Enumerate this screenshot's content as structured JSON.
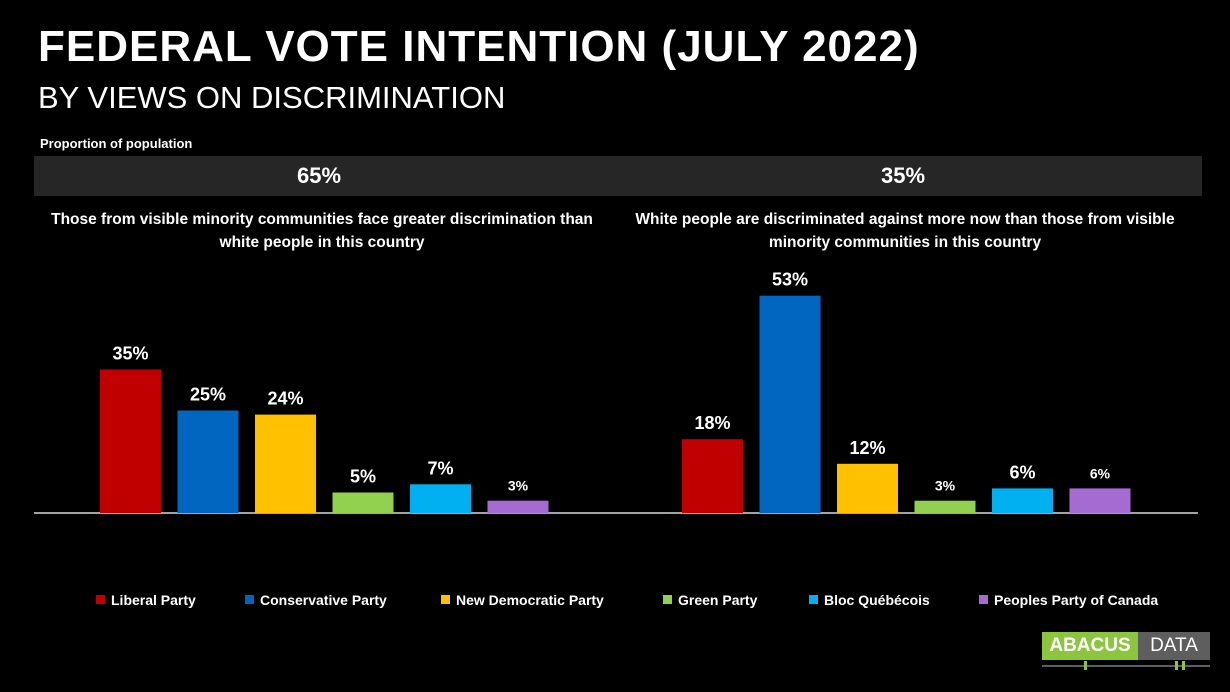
{
  "header": {
    "title": "FEDERAL VOTE INTENTION (JULY 2022)",
    "subtitle": "BY VIEWS ON DISCRIMINATION",
    "proportion_label": "Proportion of population"
  },
  "chart_data": {
    "type": "bar",
    "title": "FEDERAL VOTE INTENTION (JULY 2022)",
    "subtitle": "BY VIEWS ON DISCRIMINATION",
    "ylim": [
      0,
      60
    ],
    "series": [
      {
        "name": "Liberal Party",
        "color": "#c00000"
      },
      {
        "name": "Conservative Party",
        "color": "#0066c0"
      },
      {
        "name": "New Democratic Party",
        "color": "#ffc000"
      },
      {
        "name": "Green Party",
        "color": "#92d050"
      },
      {
        "name": "Bloc Québécois",
        "color": "#00b0f0"
      },
      {
        "name": "Peoples Party of Canada",
        "color": "#a66bd3"
      }
    ],
    "groups": [
      {
        "proportion": "65%",
        "label": "Those from visible minority communities face greater discrimination than white people in this country",
        "values": [
          35,
          25,
          24,
          5,
          7,
          3
        ],
        "labels": [
          "35%",
          "25%",
          "24%",
          "5%",
          "7%",
          "3%"
        ]
      },
      {
        "proportion": "35%",
        "label": "White people are discriminated against more now than those from visible minority communities in this country",
        "values": [
          18,
          53,
          12,
          3,
          6,
          6
        ],
        "labels": [
          "18%",
          "53%",
          "12%",
          "3%",
          "6%",
          "6%"
        ]
      }
    ]
  },
  "logo": {
    "left_text": "ABACUS",
    "right_text": "DATA"
  }
}
